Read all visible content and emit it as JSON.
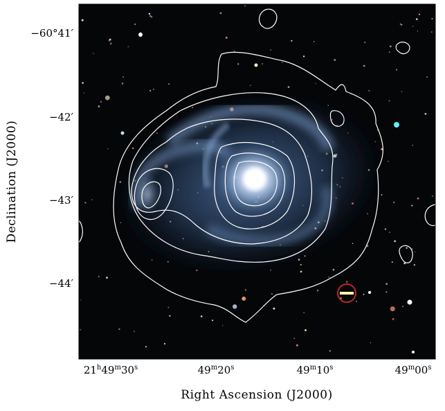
{
  "figure": {
    "x_axis_title": "Right Ascension (J2000)",
    "y_axis_title": "Declination (J2000)",
    "x_ticks": [
      {
        "h": "21",
        "m": "49",
        "s": "30"
      },
      {
        "m": "49",
        "s": "20"
      },
      {
        "m": "49",
        "s": "10"
      },
      {
        "m": "49",
        "s": "00"
      }
    ],
    "y_ticks": [
      "−60°41′",
      "−42′",
      "−43′",
      "−44′"
    ],
    "colors": {
      "background": "#050608",
      "galaxy_core": "#f4f8ff",
      "galaxy_arms": "#6f95c7",
      "contour": "#ffffff"
    }
  }
}
